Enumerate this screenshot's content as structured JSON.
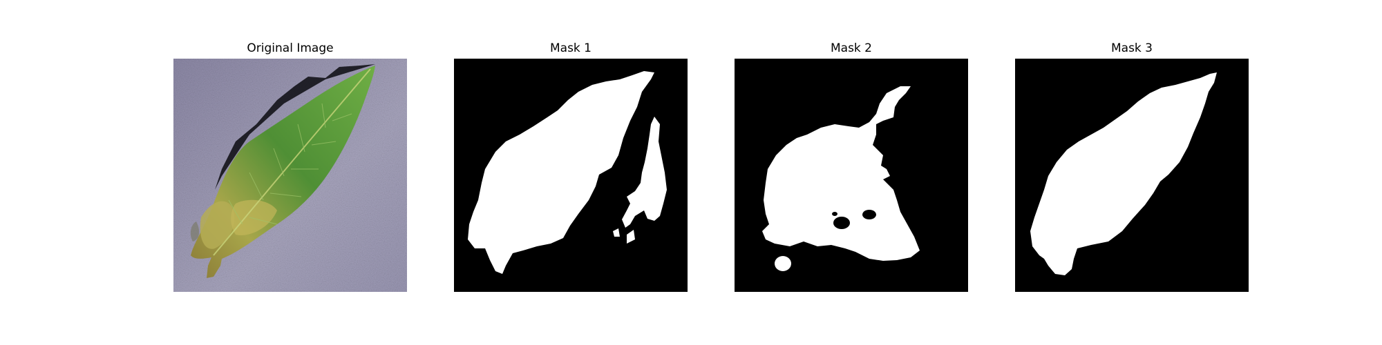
{
  "figure": {
    "panels": [
      {
        "title": "Original Image",
        "content": "leaf-photo"
      },
      {
        "title": "Mask 1",
        "content": "binary-mask"
      },
      {
        "title": "Mask 2",
        "content": "binary-mask"
      },
      {
        "title": "Mask 3",
        "content": "binary-mask"
      }
    ]
  },
  "colors": {
    "background": "#ffffff",
    "mask_background": "#000000",
    "mask_foreground": "#ffffff",
    "surface": "#8f8aa6",
    "leaf_green": "#5f9a3c",
    "leaf_yellow": "#b7ab4e",
    "shadow": "#1a1a22"
  }
}
